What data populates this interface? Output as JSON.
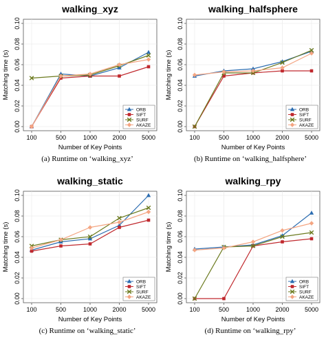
{
  "colors": {
    "ORB": "#2b6cb0",
    "SIFT": "#c0282d",
    "SURF": "#6b7a1e",
    "AKAZE": "#f4a582"
  },
  "chart_data": [
    {
      "type": "line",
      "title": "walking_xyz",
      "caption": "(a) Runtime on   ‘walking_xyz’",
      "xlabel": "Number of Key Points",
      "ylabel": "Matching time (s)",
      "categories": [
        "100",
        "500",
        "1000",
        "2000",
        "5000"
      ],
      "ylim": [
        0,
        0.1
      ],
      "yticks": [
        "0.00",
        "0.02",
        "0.04",
        "0.06",
        "0.08",
        "0.10"
      ],
      "legend_position": "bottom-right",
      "series": [
        {
          "name": "ORB",
          "values": [
            0.0,
            0.051,
            0.049,
            0.057,
            0.072
          ]
        },
        {
          "name": "SIFT",
          "values": [
            0.0,
            0.047,
            0.049,
            0.049,
            0.058
          ]
        },
        {
          "name": "SURF",
          "values": [
            0.047,
            0.049,
            0.05,
            0.059,
            0.069
          ]
        },
        {
          "name": "AKAZE",
          "values": [
            0.0,
            0.049,
            0.051,
            0.06,
            0.065
          ]
        }
      ]
    },
    {
      "type": "line",
      "title": "walking_halfsphere",
      "caption": "(b) Runtime on   ‘walking_halfsphere’",
      "xlabel": "Number of Key Points",
      "ylabel": "Matching time (s)",
      "categories": [
        "100",
        "500",
        "1000",
        "2000",
        "5000"
      ],
      "ylim": [
        0,
        0.1
      ],
      "yticks": [
        "0.00",
        "0.02",
        "0.04",
        "0.06",
        "0.08",
        "0.10"
      ],
      "legend_position": "bottom-right",
      "series": [
        {
          "name": "ORB",
          "values": [
            0.049,
            0.054,
            0.056,
            0.063,
            0.073
          ]
        },
        {
          "name": "SIFT",
          "values": [
            0.0,
            0.049,
            0.052,
            0.054,
            0.054
          ]
        },
        {
          "name": "SURF",
          "values": [
            0.0,
            0.052,
            0.052,
            0.062,
            0.074
          ]
        },
        {
          "name": "AKAZE",
          "values": [
            0.05,
            0.053,
            0.054,
            0.057,
            0.071
          ]
        }
      ]
    },
    {
      "type": "line",
      "title": "walking_static",
      "caption": "(c) Runtime on   ‘walking_static’",
      "xlabel": "Number of Key Points",
      "ylabel": "Matching time (s)",
      "categories": [
        "100",
        "500",
        "1000",
        "2000",
        "5000"
      ],
      "ylim": [
        0,
        0.1
      ],
      "yticks": [
        "0.00",
        "0.02",
        "0.04",
        "0.06",
        "0.08",
        "0.10"
      ],
      "legend_position": "bottom-right",
      "series": [
        {
          "name": "ORB",
          "values": [
            0.047,
            0.055,
            0.058,
            0.071,
            0.1
          ]
        },
        {
          "name": "SIFT",
          "values": [
            0.046,
            0.051,
            0.053,
            0.069,
            0.076
          ]
        },
        {
          "name": "SURF",
          "values": [
            0.051,
            0.057,
            0.06,
            0.078,
            0.088
          ]
        },
        {
          "name": "AKAZE",
          "values": [
            0.049,
            0.057,
            0.069,
            0.074,
            0.084
          ]
        }
      ]
    },
    {
      "type": "line",
      "title": "walking_rpy",
      "caption": "(d) Runtime on   ‘walking_rpy’",
      "xlabel": "Number of Key Points",
      "ylabel": "Matching time (s)",
      "categories": [
        "100",
        "500",
        "1000",
        "2000",
        "5000"
      ],
      "ylim": [
        0,
        0.1
      ],
      "yticks": [
        "0.00",
        "0.02",
        "0.04",
        "0.06",
        "0.08",
        "0.10"
      ],
      "legend_position": "bottom-right",
      "series": [
        {
          "name": "ORB",
          "values": [
            0.048,
            0.05,
            0.052,
            0.061,
            0.083
          ]
        },
        {
          "name": "SIFT",
          "values": [
            0.0,
            0.0,
            0.051,
            0.055,
            0.058
          ]
        },
        {
          "name": "SURF",
          "values": [
            0.0,
            0.05,
            0.051,
            0.06,
            0.064
          ]
        },
        {
          "name": "AKAZE",
          "values": [
            0.047,
            0.049,
            0.055,
            0.066,
            0.073
          ]
        }
      ]
    }
  ]
}
